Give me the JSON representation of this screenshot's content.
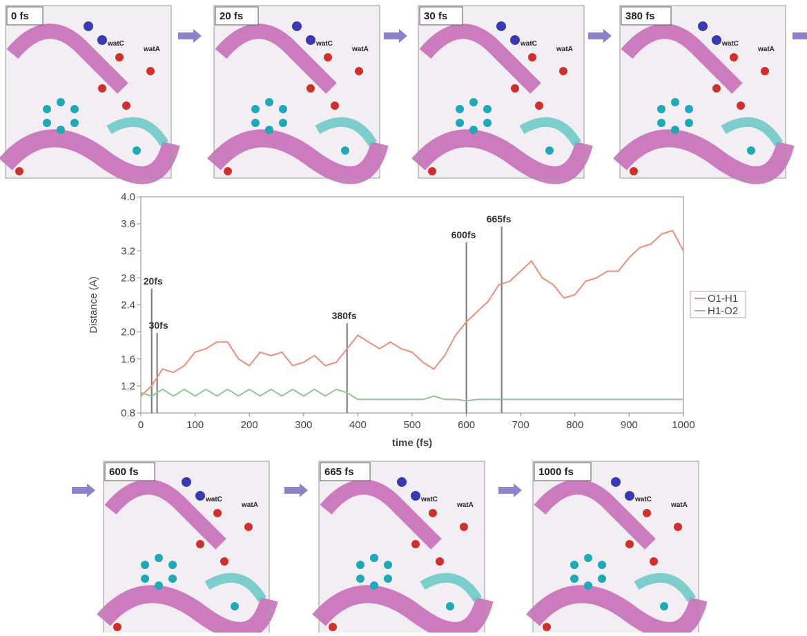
{
  "chart_data": {
    "type": "line",
    "x": [
      0,
      20,
      40,
      60,
      80,
      100,
      120,
      140,
      160,
      180,
      200,
      220,
      240,
      260,
      280,
      300,
      320,
      340,
      360,
      380,
      400,
      420,
      440,
      460,
      480,
      500,
      520,
      540,
      560,
      580,
      600,
      620,
      640,
      660,
      680,
      700,
      720,
      740,
      760,
      780,
      800,
      820,
      840,
      860,
      880,
      900,
      920,
      940,
      960,
      980,
      1000
    ],
    "series": [
      {
        "name": "O1-H1",
        "color": "#f08a7a",
        "values": [
          1.05,
          1.2,
          1.45,
          1.4,
          1.5,
          1.7,
          1.75,
          1.85,
          1.85,
          1.6,
          1.5,
          1.7,
          1.65,
          1.7,
          1.5,
          1.55,
          1.65,
          1.5,
          1.55,
          1.75,
          1.95,
          1.85,
          1.75,
          1.85,
          1.75,
          1.7,
          1.55,
          1.45,
          1.65,
          1.95,
          2.15,
          2.3,
          2.45,
          2.7,
          2.75,
          2.9,
          3.05,
          2.8,
          2.7,
          2.5,
          2.55,
          2.75,
          2.8,
          2.9,
          2.9,
          3.1,
          3.25,
          3.3,
          3.45,
          3.5,
          3.2
        ]
      },
      {
        "name": "H1-O2",
        "color": "#8ec98a",
        "values": [
          1.1,
          1.05,
          1.15,
          1.05,
          1.15,
          1.05,
          1.15,
          1.05,
          1.15,
          1.05,
          1.15,
          1.05,
          1.15,
          1.05,
          1.15,
          1.05,
          1.15,
          1.05,
          1.15,
          1.1,
          1.0,
          1.0,
          1.0,
          1.0,
          1.0,
          1.0,
          1.0,
          1.05,
          1.0,
          1.0,
          0.98,
          1.0,
          1.0,
          1.0,
          1.0,
          1.0,
          1.0,
          1.0,
          1.0,
          1.0,
          1.0,
          1.0,
          1.0,
          1.0,
          1.0,
          1.0,
          1.0,
          1.0,
          1.0,
          1.0,
          1.0
        ]
      }
    ],
    "xlim": [
      0,
      1000
    ],
    "xticks": [
      0,
      100,
      200,
      300,
      400,
      500,
      600,
      700,
      800,
      900,
      1000
    ],
    "ylim": [
      0.8,
      4.0
    ],
    "yticks": [
      0.8,
      1.2,
      1.6,
      {
        "value": 2,
        "label": "2.0"
      },
      2.4,
      2.8,
      3.2,
      3.6,
      {
        "value": 4,
        "label": "4.0"
      }
    ],
    "xlabel": "time (fs)",
    "ylabel": "Distance (A)",
    "legend": "right",
    "annotations": [
      {
        "x": 20,
        "label": "20fs"
      },
      {
        "x": 30,
        "label": "30fs"
      },
      {
        "x": 380,
        "label": "380fs"
      },
      {
        "x": 600,
        "label": "600fs"
      },
      {
        "x": 665,
        "label": "665fs"
      }
    ]
  },
  "panels": [
    {
      "time": "0 fs",
      "labels": [
        "watC",
        "watA"
      ]
    },
    {
      "time": "20 fs",
      "labels": [
        "watC",
        "watA"
      ]
    },
    {
      "time": "30 fs",
      "labels": [
        "watC",
        "watA"
      ]
    },
    {
      "time": "380 fs",
      "labels": [
        "watC",
        "watA"
      ]
    },
    {
      "time": "600 fs",
      "labels": [
        "watC",
        "watA"
      ]
    },
    {
      "time": "665 fs",
      "labels": [
        "watC",
        "watA"
      ]
    },
    {
      "time": "1000 fs",
      "labels": [
        "watC",
        "watA"
      ]
    }
  ]
}
